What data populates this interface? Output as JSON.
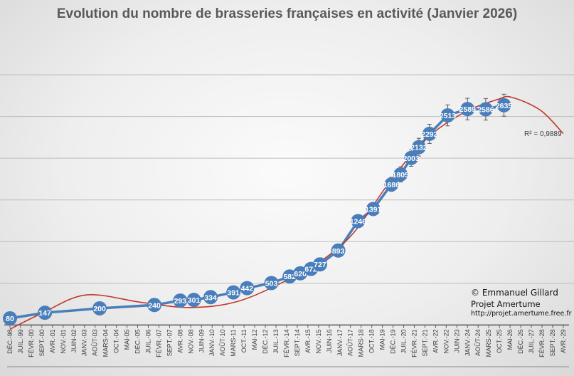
{
  "chart_data": {
    "type": "line",
    "title": "Evolution du nombre de brasseries françaises en activité (Janvier 2026)",
    "xlabel": "",
    "ylabel": "",
    "ylim": [
      0,
      3000
    ],
    "y_gridlines": [
      500,
      1000,
      1500,
      2000,
      2500,
      3000
    ],
    "y_tick_labels_shown": false,
    "grid": true,
    "x_tick_labels": [
      "DÉC.-98",
      "JUIL.-99",
      "FÉVR.-00",
      "SEPT.-00",
      "AVR.-01",
      "NOV.-01",
      "JUIN-02",
      "JANV.-03",
      "AOÛT-03",
      "MARS-04",
      "OCT.-04",
      "MAI-05",
      "DÉC.-05",
      "JUIL.-06",
      "FÉVR.-07",
      "SEPT.-07",
      "AVR.-08",
      "NOV.-08",
      "JUIN-09",
      "JANV.-10",
      "AOÛT-10",
      "MARS-11",
      "OCT.-11",
      "MAI-12",
      "DÉC.-12",
      "JUIL.-13",
      "FÉVR.-14",
      "SEPT.-14",
      "AVR.-15",
      "NOV.-15",
      "JUIN-16",
      "JANV.-17",
      "AOÛT-17",
      "MARS-18",
      "OCT.-18",
      "MAI-19",
      "DÉC.-19",
      "JUIL.-20",
      "FÉVR.-21",
      "SEPT.-21",
      "AVR.-22",
      "NOV.-22",
      "JUIN-23",
      "JANV.-24",
      "AOÛT-24",
      "MARS-25",
      "OCT.-25",
      "MAI-26",
      "DÉC.-26",
      "JUIL.-27",
      "FÉVR.-28",
      "SEPT.-28",
      "AVR.-29"
    ],
    "x_range": [
      "1998-12",
      "2029-04"
    ],
    "series": [
      {
        "color": "#4a7ebb",
        "marker": "circle",
        "data_labels": true,
        "error_bars_percent": 5,
        "points": [
          {
            "x": "1998-12",
            "y": 80
          },
          {
            "x": "2000-11",
            "y": 147
          },
          {
            "x": "2003-11",
            "y": 200
          },
          {
            "x": "2006-11",
            "y": 240
          },
          {
            "x": "2008-04",
            "y": 293
          },
          {
            "x": "2009-01",
            "y": 301
          },
          {
            "x": "2009-12",
            "y": 334
          },
          {
            "x": "2011-03",
            "y": 391
          },
          {
            "x": "2011-12",
            "y": 442
          },
          {
            "x": "2013-04",
            "y": 503
          },
          {
            "x": "2014-04",
            "y": 582
          },
          {
            "x": "2014-11",
            "y": 620
          },
          {
            "x": "2015-06",
            "y": 672
          },
          {
            "x": "2015-12",
            "y": 727
          },
          {
            "x": "2016-12",
            "y": 893
          },
          {
            "x": "2018-01",
            "y": 1246
          },
          {
            "x": "2018-11",
            "y": 1391
          },
          {
            "x": "2019-11",
            "y": 1686
          },
          {
            "x": "2020-05",
            "y": 1805
          },
          {
            "x": "2020-12",
            "y": 2003
          },
          {
            "x": "2021-05",
            "y": 2132
          },
          {
            "x": "2021-12",
            "y": 2292
          },
          {
            "x": "2022-12",
            "y": 2513
          },
          {
            "x": "2024-01",
            "y": 2589
          },
          {
            "x": "2025-01",
            "y": 2586
          },
          {
            "x": "2026-01",
            "y": 2635
          }
        ]
      }
    ],
    "trendline": {
      "type": "polynomial",
      "color": "#c0392b",
      "r2_label": "R² = 0,9889",
      "points": [
        {
          "x": "1998-12",
          "y": -50
        },
        {
          "x": "2000-09",
          "y": 140
        },
        {
          "x": "2003-02",
          "y": 360
        },
        {
          "x": "2006-03",
          "y": 270
        },
        {
          "x": "2008-11",
          "y": 210
        },
        {
          "x": "2011-08",
          "y": 295
        },
        {
          "x": "2014-10",
          "y": 610
        },
        {
          "x": "2016-05",
          "y": 825
        },
        {
          "x": "2017-11",
          "y": 1125
        },
        {
          "x": "2019-10",
          "y": 1720
        },
        {
          "x": "2021-10",
          "y": 2235
        },
        {
          "x": "2023-11",
          "y": 2550
        },
        {
          "x": "2025-09",
          "y": 2705
        },
        {
          "x": "2026-06",
          "y": 2730
        },
        {
          "x": "2028-01",
          "y": 2575
        },
        {
          "x": "2029-04",
          "y": 2295
        }
      ]
    }
  },
  "credit": {
    "line1": "© Emmanuel Gillard",
    "line2": "Projet Amertume",
    "line3": "http://projet.amertume.free.fr"
  }
}
